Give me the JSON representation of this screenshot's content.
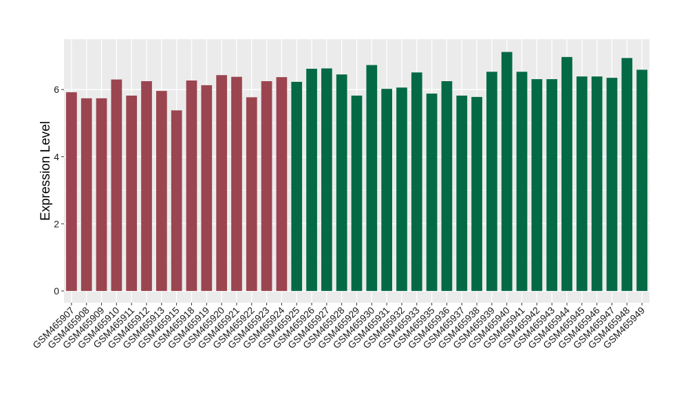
{
  "chart_data": {
    "type": "bar",
    "title": "",
    "xlabel": "",
    "ylabel": "Expression Level",
    "ylim": [
      -0.35,
      7.5
    ],
    "yticks": [
      0,
      2,
      4,
      6
    ],
    "grid": true,
    "legend": "none",
    "colors": {
      "group1": "#9b4550",
      "group2": "#046a45",
      "panel": "#ebebeb",
      "gridline": "#ffffff"
    },
    "categories": [
      "GSM465907",
      "GSM465908",
      "GSM465909",
      "GSM465910",
      "GSM465911",
      "GSM465912",
      "GSM465913",
      "GSM465915",
      "GSM465918",
      "GSM465919",
      "GSM465920",
      "GSM465921",
      "GSM465922",
      "GSM465923",
      "GSM465924",
      "GSM465925",
      "GSM465926",
      "GSM465927",
      "GSM465928",
      "GSM465929",
      "GSM465930",
      "GSM465931",
      "GSM465932",
      "GSM465933",
      "GSM465935",
      "GSM465936",
      "GSM465937",
      "GSM465938",
      "GSM465939",
      "GSM465940",
      "GSM465941",
      "GSM465942",
      "GSM465943",
      "GSM465944",
      "GSM465945",
      "GSM465946",
      "GSM465947",
      "GSM465948",
      "GSM465949"
    ],
    "values": [
      5.92,
      5.74,
      5.74,
      6.3,
      5.82,
      6.25,
      5.96,
      5.38,
      6.27,
      6.13,
      6.43,
      6.38,
      5.77,
      6.25,
      6.37,
      6.23,
      6.62,
      6.63,
      6.45,
      5.82,
      6.73,
      6.02,
      6.06,
      6.51,
      5.88,
      6.25,
      5.82,
      5.78,
      6.53,
      7.12,
      6.53,
      6.31,
      6.31,
      6.97,
      6.39,
      6.39,
      6.35,
      6.94,
      6.59
    ],
    "groups": [
      1,
      1,
      1,
      1,
      1,
      1,
      1,
      1,
      1,
      1,
      1,
      1,
      1,
      1,
      1,
      2,
      2,
      2,
      2,
      2,
      2,
      2,
      2,
      2,
      2,
      2,
      2,
      2,
      2,
      2,
      2,
      2,
      2,
      2,
      2,
      2,
      2,
      2,
      2
    ]
  }
}
